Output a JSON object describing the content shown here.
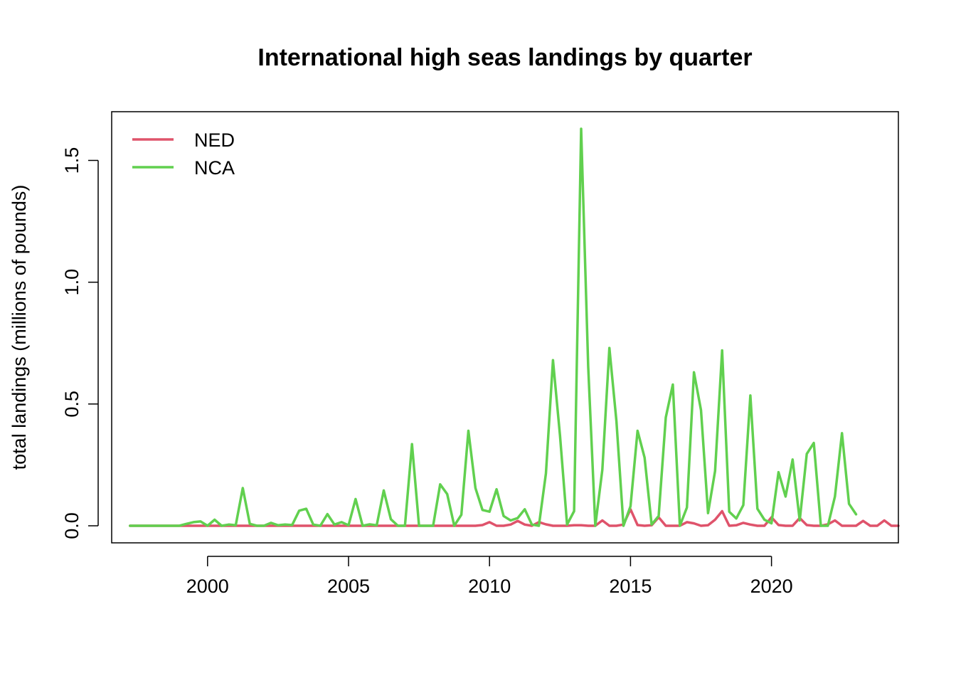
{
  "chart_data": {
    "type": "line",
    "title": "International high seas landings by quarter",
    "xlabel": "",
    "ylabel": "total landings (millions of pounds)",
    "xlim": [
      1996.6,
      2024.5
    ],
    "ylim": [
      -0.07,
      1.7
    ],
    "x_ticks": [
      2000,
      2005,
      2010,
      2015,
      2020
    ],
    "x_tick_labels": [
      "2000",
      "2005",
      "2010",
      "2015",
      "2020"
    ],
    "y_ticks": [
      0.0,
      0.5,
      1.0,
      1.5
    ],
    "y_tick_labels": [
      "0.0",
      "0.5",
      "1.0",
      "1.5"
    ],
    "grid": false,
    "legend_position": "top-left",
    "x_start": 1997.25,
    "x_step": 0.25,
    "series": [
      {
        "name": "NED",
        "color": "#DF536B",
        "values": [
          0,
          0,
          0,
          0,
          0,
          0,
          0,
          0,
          0,
          0,
          0,
          0,
          0,
          0,
          0,
          0,
          0,
          0,
          0,
          0,
          0,
          0,
          0,
          0,
          0,
          0,
          0,
          0,
          0,
          0,
          0,
          0,
          0,
          0,
          0,
          0,
          0,
          0,
          0,
          0,
          0,
          0,
          0,
          0,
          0,
          0,
          0,
          0,
          0,
          0,
          0.003,
          0.015,
          0,
          0,
          0.005,
          0.02,
          0.005,
          0,
          0.015,
          0.006,
          0,
          0,
          0,
          0.002,
          0.002,
          0,
          0,
          0.022,
          0,
          0,
          0.005,
          0.068,
          0.003,
          0,
          0.002,
          0.035,
          0,
          0,
          0,
          0.015,
          0.01,
          0,
          0.002,
          0.025,
          0.06,
          0,
          0.002,
          0.012,
          0.005,
          0,
          0,
          0.035,
          0.003,
          0,
          0,
          0.032,
          0.003,
          0,
          0,
          0.006,
          0.022,
          0,
          0,
          0,
          0.02,
          0,
          0,
          0.022,
          0,
          0
        ]
      },
      {
        "name": "NCA",
        "color": "#61D04F",
        "values": [
          0,
          0,
          0,
          0,
          0,
          0,
          0,
          0,
          0.008,
          0.015,
          0.018,
          0,
          0.025,
          0,
          0.005,
          0.002,
          0.155,
          0.008,
          0,
          0,
          0.012,
          0.002,
          0.005,
          0.003,
          0.062,
          0.07,
          0.005,
          0,
          0.048,
          0.005,
          0.015,
          0.002,
          0.11,
          0,
          0.006,
          0.002,
          0.145,
          0.027,
          0,
          0,
          0.335,
          0,
          0,
          0,
          0.17,
          0.13,
          0,
          0.045,
          0.39,
          0.155,
          0.065,
          0.058,
          0.15,
          0.04,
          0.022,
          0.032,
          0.068,
          0.005,
          0,
          0.215,
          0.68,
          0.37,
          0.005,
          0.06,
          1.63,
          0.655,
          0,
          0.23,
          0.73,
          0.43,
          0,
          0.08,
          0.39,
          0.28,
          0.005,
          0.04,
          0.445,
          0.58,
          0,
          0.075,
          0.63,
          0.475,
          0.052,
          0.225,
          0.72,
          0.058,
          0.03,
          0.085,
          0.535,
          0.07,
          0.025,
          0.01,
          0.22,
          0.12,
          0.272,
          0.022,
          0.295,
          0.34,
          0,
          0,
          0.12,
          0.38,
          0.09,
          0.047
        ]
      }
    ]
  }
}
